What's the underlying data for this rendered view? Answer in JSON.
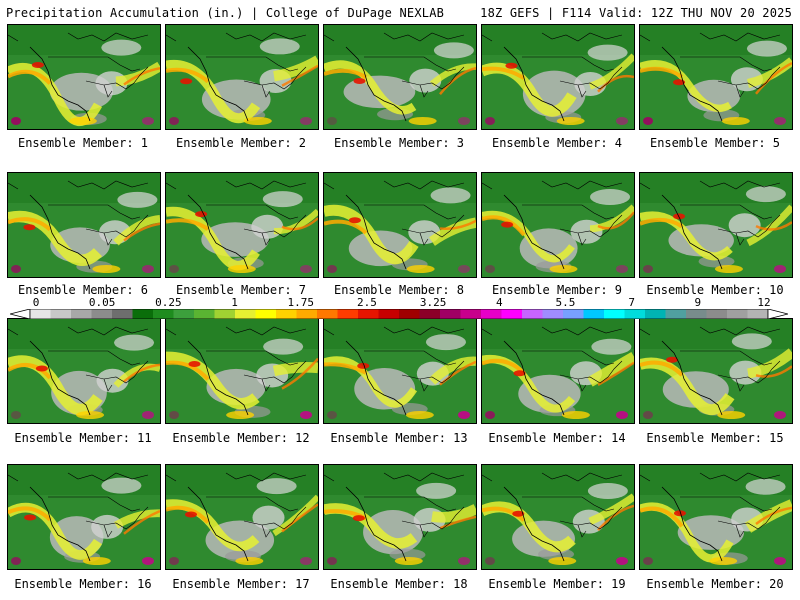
{
  "header": {
    "title": "Precipitation Accumulation (in.) | College of DuPage NEXLAB",
    "run_info": "18Z GEFS | F114 Valid: 12Z THU NOV 20 2025"
  },
  "panels": [
    {
      "label": "Ensemble Member: 1"
    },
    {
      "label": "Ensemble Member: 2"
    },
    {
      "label": "Ensemble Member: 3"
    },
    {
      "label": "Ensemble Member: 4"
    },
    {
      "label": "Ensemble Member: 5"
    },
    {
      "label": "Ensemble Member: 6"
    },
    {
      "label": "Ensemble Member: 7"
    },
    {
      "label": "Ensemble Member: 8"
    },
    {
      "label": "Ensemble Member: 9"
    },
    {
      "label": "Ensemble Member: 10"
    },
    {
      "label": "Ensemble Member: 11"
    },
    {
      "label": "Ensemble Member: 12"
    },
    {
      "label": "Ensemble Member: 13"
    },
    {
      "label": "Ensemble Member: 14"
    },
    {
      "label": "Ensemble Member: 15"
    },
    {
      "label": "Ensemble Member: 16"
    },
    {
      "label": "Ensemble Member: 17"
    },
    {
      "label": "Ensemble Member: 18"
    },
    {
      "label": "Ensemble Member: 19"
    },
    {
      "label": "Ensemble Member: 20"
    }
  ],
  "colorbar": {
    "labels": [
      "0",
      "0.05",
      "0.25",
      "1",
      "1.75",
      "2.5",
      "3.25",
      "4",
      "5.5",
      "7",
      "9",
      "12"
    ],
    "colors": [
      "#e6e6e6",
      "#c8c8c8",
      "#a8a8a8",
      "#8c8c8c",
      "#6e6e6e",
      "#0a6e0a",
      "#1e8c1e",
      "#3ca03c",
      "#5ab432",
      "#a0d232",
      "#e6f032",
      "#ffff00",
      "#ffd200",
      "#ffaa00",
      "#ff7800",
      "#ff3c00",
      "#e61400",
      "#c80000",
      "#a00000",
      "#8c0028",
      "#a00064",
      "#c8008c",
      "#e600c8",
      "#ff00ff",
      "#c864ff",
      "#a08cff",
      "#78a0ff",
      "#00c8ff",
      "#00ffff",
      "#00dcdc",
      "#00b4b4",
      "#50a0a0",
      "#788c8c",
      "#8c8c8c",
      "#a0a0a0",
      "#b4b4b4"
    ]
  }
}
